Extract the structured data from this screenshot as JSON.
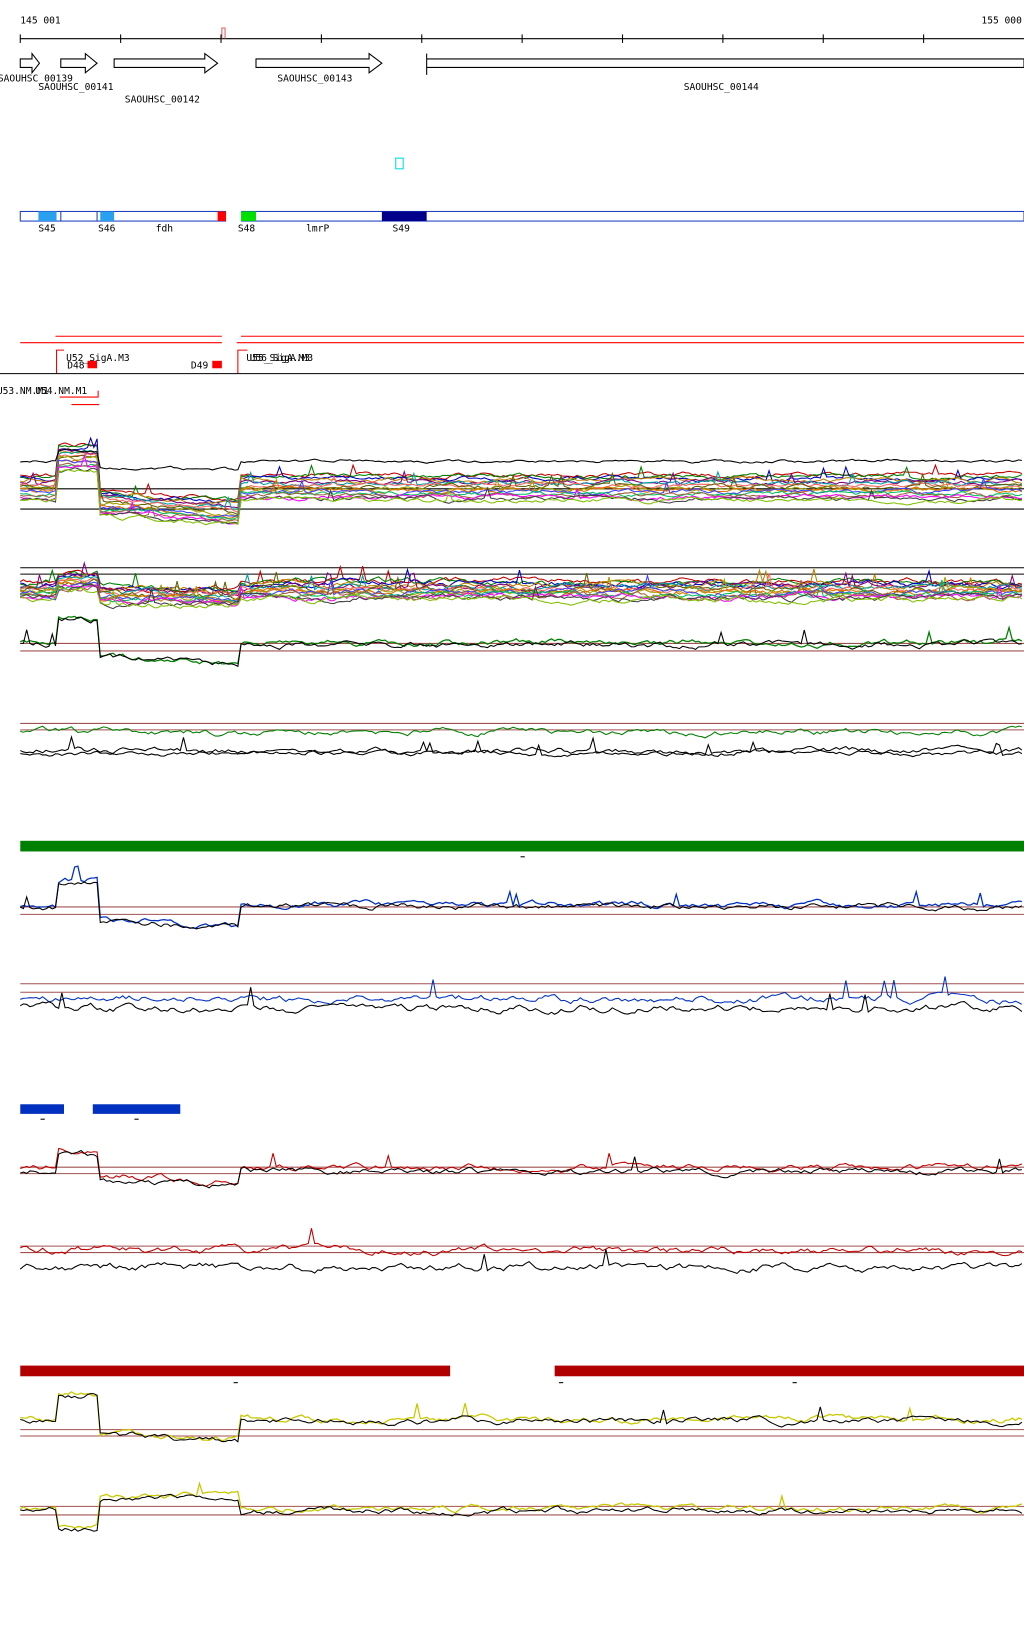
{
  "ruler": {
    "start": "145 001",
    "end": "155 000"
  },
  "genes": [
    "SAOUHSC_00139",
    "SAOUHSC_00141",
    "SAOUHSC_00142",
    "SAOUHSC_00143",
    "SAOUHSC_00144"
  ],
  "segments": [
    "S45",
    "S46",
    "fdh",
    "S48",
    "lmrP",
    "S49"
  ],
  "promoters": [
    "U52_SigA.M3",
    "D48",
    "D49",
    "U55_SigA.M3",
    "U56_SigA.M3",
    "U53.NM.M1",
    "U54.NM.M1"
  ]
}
